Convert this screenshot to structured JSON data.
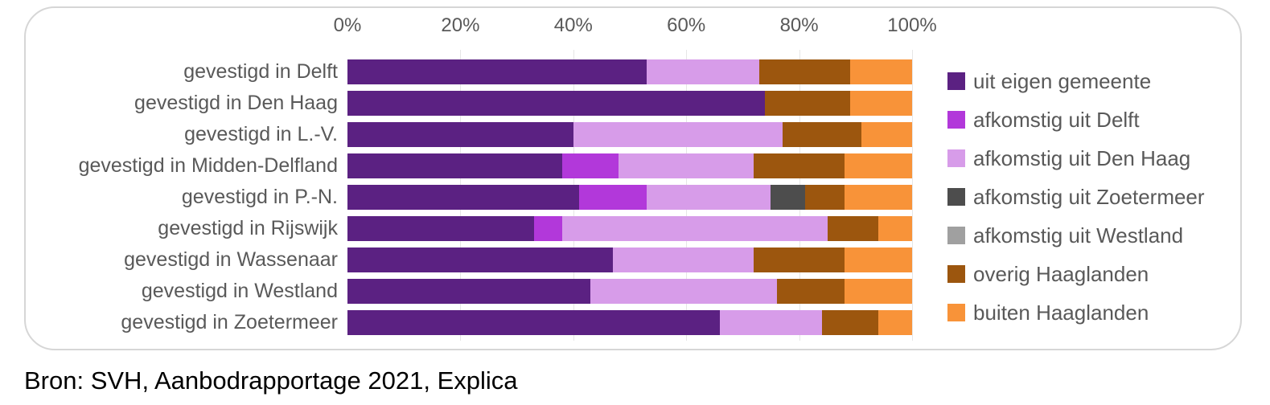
{
  "source_line": "Bron: SVH, Aanbodrapportage 2021, Explica",
  "colors": {
    "card_border": "#d6d6d6",
    "gridline": "#e6e6e6",
    "axis_text": "#595959",
    "label_text": "#595959",
    "source_text": "#000000"
  },
  "chart_data": {
    "type": "bar",
    "orientation": "horizontal",
    "stacked": true,
    "unit": "%",
    "xlim": [
      0,
      100
    ],
    "x_ticks": [
      {
        "value": 0,
        "label": "0%"
      },
      {
        "value": 20,
        "label": "20%"
      },
      {
        "value": 40,
        "label": "40%"
      },
      {
        "value": 60,
        "label": "60%"
      },
      {
        "value": 80,
        "label": "80%"
      },
      {
        "value": 100,
        "label": "100%"
      }
    ],
    "grid": true,
    "legend_position": "right",
    "categories": [
      "gevestigd in Delft",
      "gevestigd in Den Haag",
      "gevestigd in L.-V.",
      "gevestigd in Midden-Delfland",
      "gevestigd in P.-N.",
      "gevestigd in Rijswijk",
      "gevestigd in Wassenaar",
      "gevestigd in Westland",
      "gevestigd in Zoetermeer"
    ],
    "series": [
      {
        "name": "uit eigen gemeente",
        "color": "#5b2182",
        "values": [
          53,
          74,
          40,
          38,
          41,
          33,
          47,
          43,
          66
        ]
      },
      {
        "name": "afkomstig uit Delft",
        "color": "#b238da",
        "values": [
          0,
          0,
          0,
          10,
          12,
          5,
          0,
          0,
          0
        ]
      },
      {
        "name": "afkomstig uit Den Haag",
        "color": "#d79ce9",
        "values": [
          20,
          0,
          37,
          24,
          22,
          47,
          25,
          33,
          18
        ]
      },
      {
        "name": "afkomstig uit Zoetermeer",
        "color": "#4d4d4d",
        "values": [
          0,
          0,
          0,
          0,
          6,
          0,
          0,
          0,
          0
        ]
      },
      {
        "name": "afkomstig uit Westland",
        "color": "#a0a0a0",
        "values": [
          0,
          0,
          0,
          0,
          0,
          0,
          0,
          0,
          0
        ]
      },
      {
        "name": "overig Haaglanden",
        "color": "#9c560e",
        "values": [
          16,
          15,
          14,
          16,
          7,
          9,
          16,
          12,
          10
        ]
      },
      {
        "name": "buiten Haaglanden",
        "color": "#f89339",
        "values": [
          11,
          11,
          9,
          12,
          12,
          6,
          12,
          12,
          6
        ]
      }
    ]
  }
}
